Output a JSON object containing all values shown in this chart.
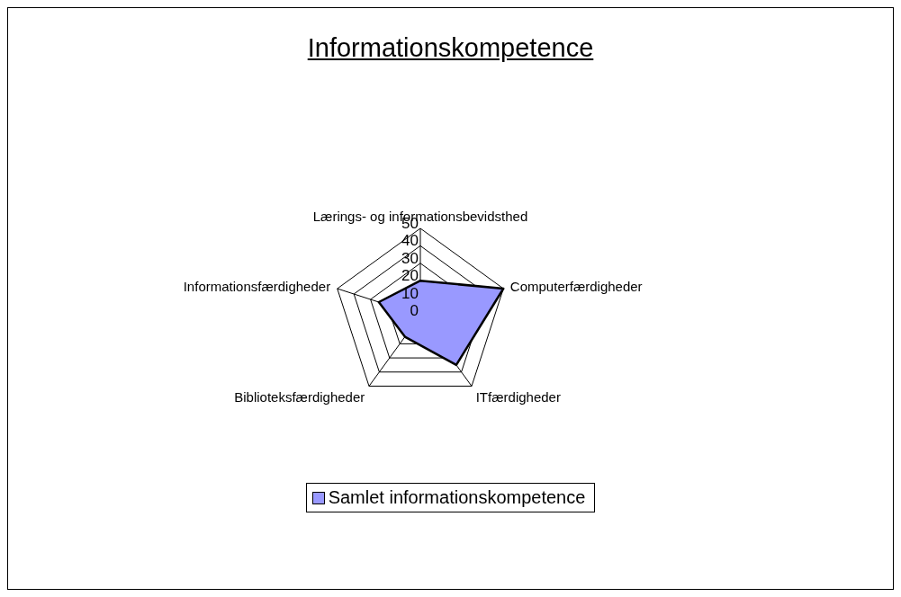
{
  "chart_data": {
    "type": "radar",
    "title": "Informationskompetence",
    "categories": [
      "Lærings- og informationsbevidsthed",
      "Computerfærdigheder",
      "ITfærdigheder",
      "Biblioteksfærdigheder",
      "Informationsfærdigheder"
    ],
    "series": [
      {
        "name": "Samlet informationskompetence",
        "color": "#9999ff",
        "values": [
          20,
          50,
          35,
          15,
          25
        ]
      }
    ],
    "ylim": [
      0,
      50
    ],
    "yticks": [
      0,
      10,
      20,
      30,
      40,
      50
    ],
    "legend": "bottom"
  }
}
